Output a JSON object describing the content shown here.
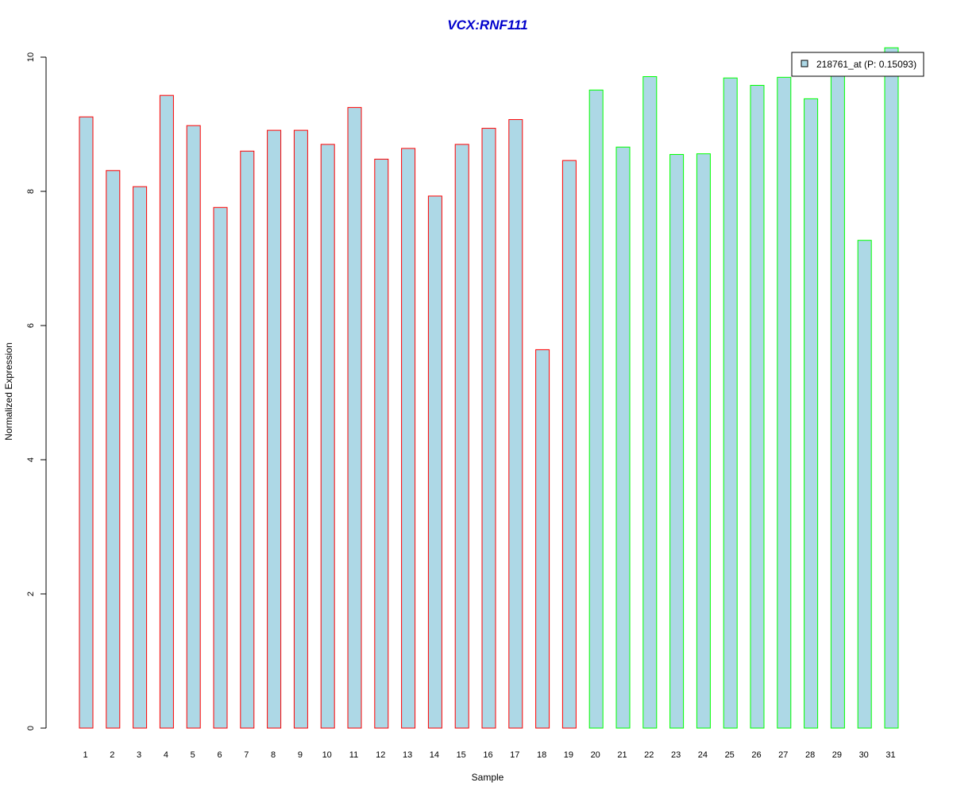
{
  "chart_data": {
    "type": "bar",
    "title": "VCX:RNF111",
    "xlabel": "Sample",
    "ylabel": "Normalized Expression",
    "categories": [
      "1",
      "2",
      "3",
      "4",
      "5",
      "6",
      "7",
      "8",
      "9",
      "10",
      "11",
      "12",
      "13",
      "14",
      "15",
      "16",
      "17",
      "18",
      "19",
      "20",
      "21",
      "22",
      "23",
      "24",
      "25",
      "26",
      "27",
      "28",
      "29",
      "30",
      "31"
    ],
    "values": [
      9.11,
      8.31,
      8.07,
      9.43,
      8.98,
      7.76,
      8.6,
      8.91,
      8.91,
      8.7,
      9.25,
      8.48,
      8.64,
      7.93,
      8.7,
      8.94,
      9.07,
      5.64,
      8.46,
      9.51,
      8.66,
      9.71,
      8.55,
      8.56,
      9.69,
      9.58,
      9.7,
      9.38,
      9.79,
      7.27,
      10.14
    ],
    "group_border_colors": [
      "#ff0000",
      "#ff0000",
      "#ff0000",
      "#ff0000",
      "#ff0000",
      "#ff0000",
      "#ff0000",
      "#ff0000",
      "#ff0000",
      "#ff0000",
      "#ff0000",
      "#ff0000",
      "#ff0000",
      "#ff0000",
      "#ff0000",
      "#ff0000",
      "#ff0000",
      "#ff0000",
      "#ff0000",
      "#00ff00",
      "#00ff00",
      "#00ff00",
      "#00ff00",
      "#00ff00",
      "#00ff00",
      "#00ff00",
      "#00ff00",
      "#00ff00",
      "#00ff00",
      "#00ff00",
      "#00ff00"
    ],
    "bar_fill_color": "#add8e6",
    "title_color": "#0000cc",
    "ylim": [
      0,
      10
    ],
    "yticks": [
      0,
      2,
      4,
      6,
      8,
      10
    ],
    "grid": false,
    "legend": {
      "position": "top-right",
      "entries": [
        {
          "label": "218761_at (P: 0.15093)",
          "color": "#add8e6"
        }
      ]
    }
  }
}
